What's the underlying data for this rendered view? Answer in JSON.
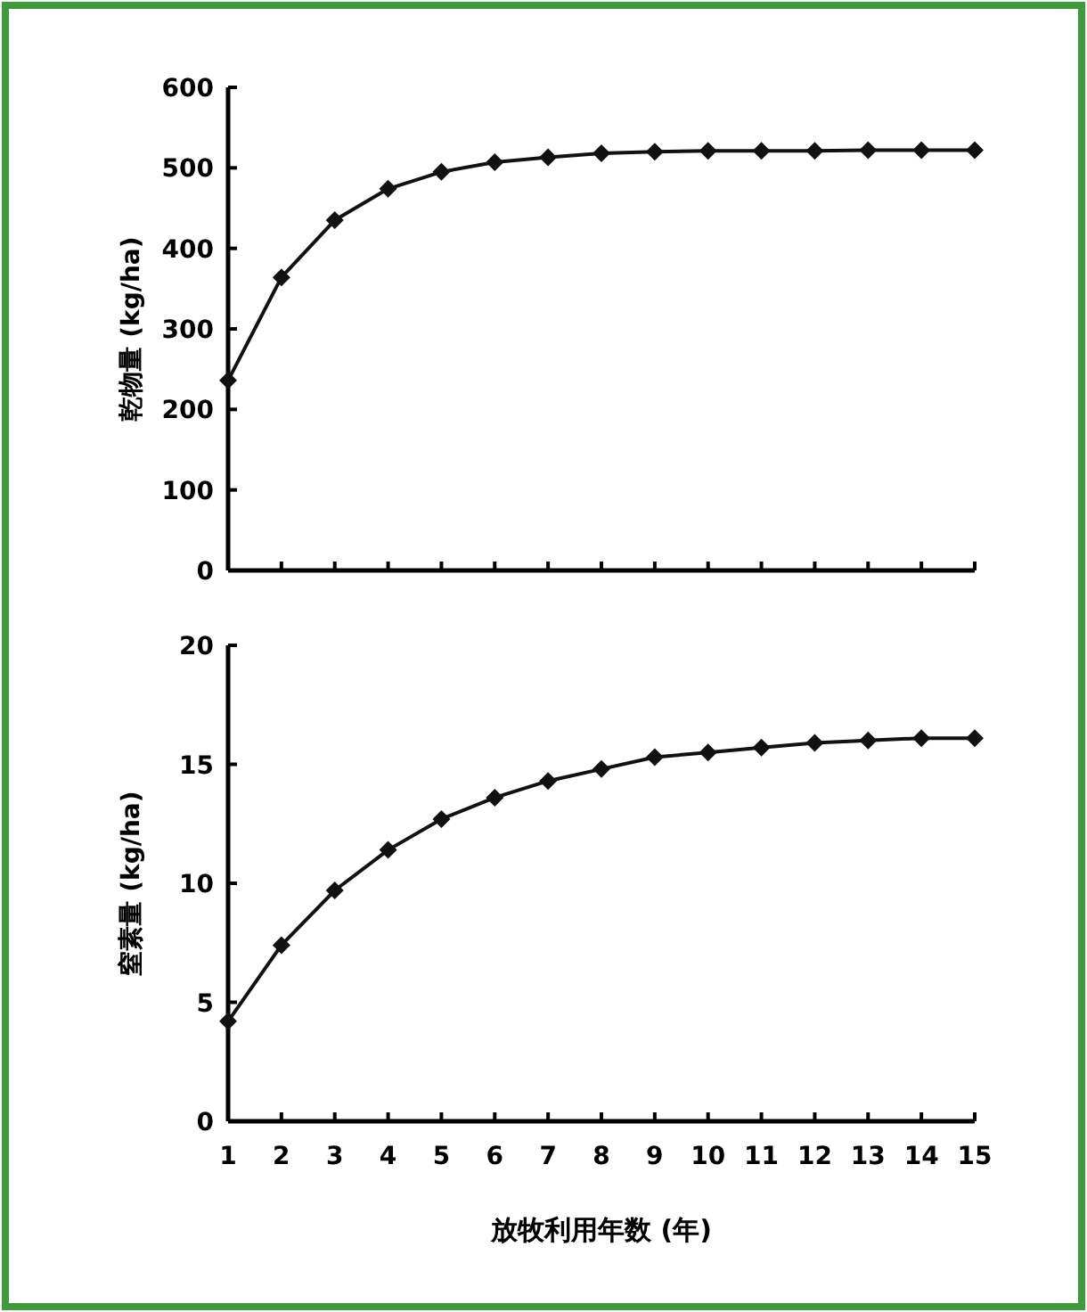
{
  "chart_data": [
    {
      "type": "line",
      "ylabel": "乾物量 (kg/ha)",
      "x": [
        1,
        2,
        3,
        4,
        5,
        6,
        7,
        8,
        9,
        10,
        11,
        12,
        13,
        14,
        15
      ],
      "xlim": [
        1,
        15
      ],
      "xticks": [
        1,
        2,
        3,
        4,
        5,
        6,
        7,
        8,
        9,
        10,
        11,
        12,
        13,
        14,
        15
      ],
      "ylim": [
        0,
        600
      ],
      "yticks": [
        0,
        100,
        200,
        300,
        400,
        500,
        600
      ],
      "tick_labels": "y",
      "marker": "diamond",
      "grid": false,
      "series": [
        {
          "color": "#111111",
          "values": [
            236,
            364,
            435,
            474,
            495,
            507,
            513,
            518,
            520,
            521,
            521,
            521,
            522,
            522,
            522
          ]
        }
      ]
    },
    {
      "type": "line",
      "ylabel": "窒素量 (kg/ha)",
      "xlabel": "放牧利用年数 (年)",
      "x": [
        1,
        2,
        3,
        4,
        5,
        6,
        7,
        8,
        9,
        10,
        11,
        12,
        13,
        14,
        15
      ],
      "xlim": [
        1,
        15
      ],
      "xticks": [
        1,
        2,
        3,
        4,
        5,
        6,
        7,
        8,
        9,
        10,
        11,
        12,
        13,
        14,
        15
      ],
      "ylim": [
        0,
        20
      ],
      "yticks": [
        0,
        5,
        10,
        15,
        20
      ],
      "marker": "diamond",
      "grid": false,
      "series": [
        {
          "color": "#111111",
          "values": [
            4.2,
            7.4,
            9.7,
            11.4,
            12.7,
            13.6,
            14.3,
            14.8,
            15.3,
            15.5,
            15.7,
            15.9,
            16.0,
            16.1,
            16.1
          ]
        }
      ]
    }
  ]
}
